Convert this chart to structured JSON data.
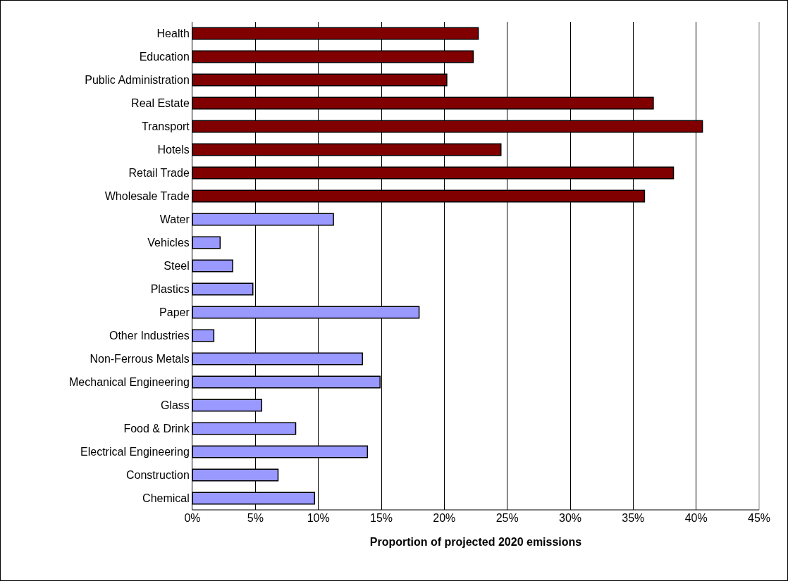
{
  "chart_data": {
    "type": "bar",
    "orientation": "horizontal",
    "xlabel": "Proportion of projected 2020 emissions",
    "categories": [
      "Health",
      "Education",
      "Public Administration",
      "Real Estate",
      "Transport",
      "Hotels",
      "Retail Trade",
      "Wholesale Trade",
      "Water",
      "Vehicles",
      "Steel",
      "Plastics",
      "Paper",
      "Other Industries",
      "Non-Ferrous Metals",
      "Mechanical Engineering",
      "Glass",
      "Food & Drink",
      "Electrical Engineering",
      "Construction",
      "Chemical"
    ],
    "values": [
      22.7,
      22.3,
      20.2,
      36.6,
      40.5,
      24.5,
      38.2,
      35.9,
      11.2,
      2.2,
      3.2,
      4.8,
      18.0,
      1.7,
      13.5,
      14.9,
      5.5,
      8.2,
      13.9,
      6.8,
      9.7
    ],
    "colors": [
      "#800000",
      "#800000",
      "#800000",
      "#800000",
      "#800000",
      "#800000",
      "#800000",
      "#800000",
      "#9999ff",
      "#9999ff",
      "#9999ff",
      "#9999ff",
      "#9999ff",
      "#9999ff",
      "#9999ff",
      "#9999ff",
      "#9999ff",
      "#9999ff",
      "#9999ff",
      "#9999ff",
      "#9999ff"
    ],
    "xlim": [
      0,
      45
    ],
    "xticks": [
      {
        "value": 0,
        "label": "0%"
      },
      {
        "value": 5,
        "label": "5%"
      },
      {
        "value": 10,
        "label": "10%"
      },
      {
        "value": 15,
        "label": "15%"
      },
      {
        "value": 20,
        "label": "20%"
      },
      {
        "value": 25,
        "label": "25%"
      },
      {
        "value": 30,
        "label": "30%"
      },
      {
        "value": 35,
        "label": "35%"
      },
      {
        "value": 40,
        "label": "40%"
      },
      {
        "value": 45,
        "label": "45%"
      }
    ],
    "grid": "x"
  }
}
